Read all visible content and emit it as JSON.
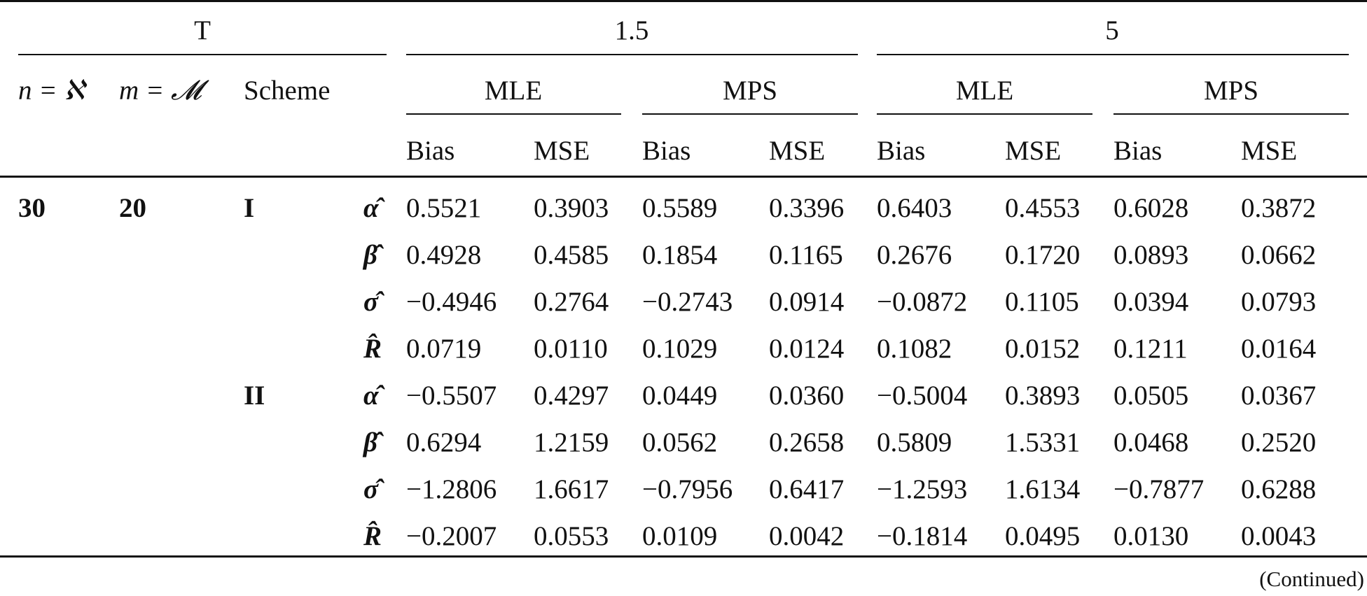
{
  "header": {
    "t_label": "T",
    "t_values": [
      "1.5",
      "5"
    ],
    "n_label": "n = ℵ",
    "m_label": "m = 𝓜",
    "scheme_label": "Scheme",
    "methods": [
      "MLE",
      "MPS",
      "MLE",
      "MPS"
    ],
    "metrics": [
      "Bias",
      "MSE",
      "Bias",
      "MSE",
      "Bias",
      "MSE",
      "Bias",
      "MSE"
    ]
  },
  "group": {
    "n": "30",
    "m": "20"
  },
  "rows": [
    {
      "scheme": "I",
      "param": "α̂",
      "cells": [
        "0.5521",
        "0.3903",
        "0.5589",
        "0.3396",
        "0.6403",
        "0.4553",
        "0.6028",
        "0.3872"
      ]
    },
    {
      "scheme": "",
      "param": "β̂",
      "cells": [
        "0.4928",
        "0.4585",
        "0.1854",
        "0.1165",
        "0.2676",
        "0.1720",
        "0.0893",
        "0.0662"
      ]
    },
    {
      "scheme": "",
      "param": "σ̂",
      "cells": [
        "−0.4946",
        "0.2764",
        "−0.2743",
        "0.0914",
        "−0.0872",
        "0.1105",
        "0.0394",
        "0.0793"
      ]
    },
    {
      "scheme": "",
      "param": "R̂",
      "cells": [
        "0.0719",
        "0.0110",
        "0.1029",
        "0.0124",
        "0.1082",
        "0.0152",
        "0.1211",
        "0.0164"
      ]
    },
    {
      "scheme": "II",
      "param": "α̂",
      "cells": [
        "−0.5507",
        "0.4297",
        "0.0449",
        "0.0360",
        "−0.5004",
        "0.3893",
        "0.0505",
        "0.0367"
      ]
    },
    {
      "scheme": "",
      "param": "β̂",
      "cells": [
        "0.6294",
        "1.2159",
        "0.0562",
        "0.2658",
        "0.5809",
        "1.5331",
        "0.0468",
        "0.2520"
      ]
    },
    {
      "scheme": "",
      "param": "σ̂",
      "cells": [
        "−1.2806",
        "1.6617",
        "−0.7956",
        "0.6417",
        "−1.2593",
        "1.6134",
        "−0.7877",
        "0.6288"
      ]
    },
    {
      "scheme": "",
      "param": "R̂",
      "cells": [
        "−0.2007",
        "0.0553",
        "0.0109",
        "0.0042",
        "−0.1814",
        "0.0495",
        "0.0130",
        "0.0043"
      ]
    }
  ],
  "footer": {
    "continued": "(Continued)"
  }
}
